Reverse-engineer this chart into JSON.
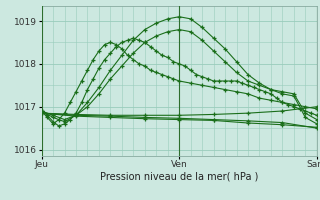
{
  "title": "",
  "xlabel": "Pression niveau de la mer( hPa )",
  "bg_color": "#cce8e0",
  "plot_bg": "#cce8e0",
  "grid_color": "#99ccbb",
  "line_color": "#1a6e1a",
  "ylim": [
    1015.85,
    1019.35
  ],
  "yticks": [
    1016,
    1017,
    1018,
    1019
  ],
  "xtick_labels": [
    "Jeu",
    "Ven",
    "Sam"
  ],
  "xtick_positions": [
    0,
    24,
    48
  ],
  "vline_positions": [
    0,
    24,
    48
  ],
  "figsize": [
    3.2,
    2.0
  ],
  "dpi": 100,
  "series": [
    {
      "x": [
        0,
        1,
        2,
        3,
        4,
        5,
        6,
        7,
        8,
        9,
        10,
        11,
        12,
        13,
        14,
        15,
        16,
        17,
        18,
        19,
        20,
        21,
        22,
        23,
        24,
        25,
        26,
        27,
        28,
        29,
        30,
        31,
        32,
        33,
        34,
        35,
        36,
        37,
        38,
        39,
        40,
        41,
        42,
        43,
        44,
        45,
        46,
        47,
        48
      ],
      "y": [
        1016.9,
        1016.8,
        1016.65,
        1016.55,
        1016.6,
        1016.7,
        1016.85,
        1017.1,
        1017.4,
        1017.65,
        1017.9,
        1018.1,
        1018.25,
        1018.4,
        1018.5,
        1018.55,
        1018.6,
        1018.55,
        1018.5,
        1018.4,
        1018.3,
        1018.2,
        1018.15,
        1018.05,
        1018.0,
        1017.95,
        1017.85,
        1017.75,
        1017.7,
        1017.65,
        1017.6,
        1017.6,
        1017.6,
        1017.6,
        1017.6,
        1017.55,
        1017.5,
        1017.45,
        1017.4,
        1017.35,
        1017.3,
        1017.2,
        1017.1,
        1017.05,
        1017.0,
        1016.95,
        1016.9,
        1016.85,
        1016.8
      ]
    },
    {
      "x": [
        0,
        2,
        4,
        6,
        8,
        10,
        12,
        14,
        16,
        18,
        20,
        22,
        24,
        26,
        28,
        30,
        32,
        34,
        36,
        38,
        40,
        42,
        44,
        46,
        48
      ],
      "y": [
        1016.9,
        1016.75,
        1016.65,
        1016.8,
        1017.1,
        1017.45,
        1017.85,
        1018.2,
        1018.55,
        1018.8,
        1018.95,
        1019.05,
        1019.1,
        1019.05,
        1018.85,
        1018.6,
        1018.35,
        1018.05,
        1017.75,
        1017.55,
        1017.4,
        1017.3,
        1017.25,
        1016.75,
        1016.6
      ]
    },
    {
      "x": [
        0,
        2,
        4,
        6,
        8,
        10,
        12,
        14,
        16,
        18,
        20,
        22,
        24,
        26,
        28,
        30,
        32,
        34,
        36,
        38,
        40,
        42,
        44,
        46,
        48
      ],
      "y": [
        1016.9,
        1016.8,
        1016.7,
        1016.8,
        1017.0,
        1017.3,
        1017.65,
        1017.95,
        1018.25,
        1018.5,
        1018.65,
        1018.75,
        1018.8,
        1018.75,
        1018.55,
        1018.3,
        1018.05,
        1017.8,
        1017.6,
        1017.5,
        1017.4,
        1017.35,
        1017.3,
        1016.85,
        1016.7
      ]
    },
    {
      "x": [
        0,
        1,
        2,
        3,
        4,
        5,
        6,
        7,
        8,
        9,
        10,
        11,
        12,
        13,
        14,
        15,
        16,
        17,
        18,
        19,
        20,
        21,
        22,
        23,
        24,
        26,
        28,
        30,
        32,
        34,
        36,
        38,
        40,
        42,
        44,
        46,
        48
      ],
      "y": [
        1016.9,
        1016.75,
        1016.6,
        1016.7,
        1016.85,
        1017.1,
        1017.35,
        1017.6,
        1017.85,
        1018.1,
        1018.3,
        1018.45,
        1018.5,
        1018.45,
        1018.35,
        1018.2,
        1018.1,
        1018.0,
        1017.95,
        1017.85,
        1017.8,
        1017.75,
        1017.7,
        1017.65,
        1017.6,
        1017.55,
        1017.5,
        1017.45,
        1017.4,
        1017.35,
        1017.3,
        1017.2,
        1017.15,
        1017.1,
        1017.05,
        1017.0,
        1016.95
      ]
    },
    {
      "x": [
        0,
        6,
        12,
        18,
        24,
        30,
        36,
        42,
        48
      ],
      "y": [
        1016.85,
        1016.78,
        1016.75,
        1016.72,
        1016.7,
        1016.68,
        1016.62,
        1016.58,
        1016.52
      ]
    },
    {
      "x": [
        0,
        6,
        12,
        18,
        24,
        30,
        36,
        42,
        48
      ],
      "y": [
        1016.85,
        1016.8,
        1016.78,
        1016.75,
        1016.73,
        1016.7,
        1016.67,
        1016.63,
        1016.5
      ]
    },
    {
      "x": [
        0,
        6,
        12,
        18,
        24,
        30,
        36,
        42,
        48
      ],
      "y": [
        1016.85,
        1016.82,
        1016.8,
        1016.8,
        1016.8,
        1016.82,
        1016.85,
        1016.9,
        1017.0
      ]
    }
  ]
}
